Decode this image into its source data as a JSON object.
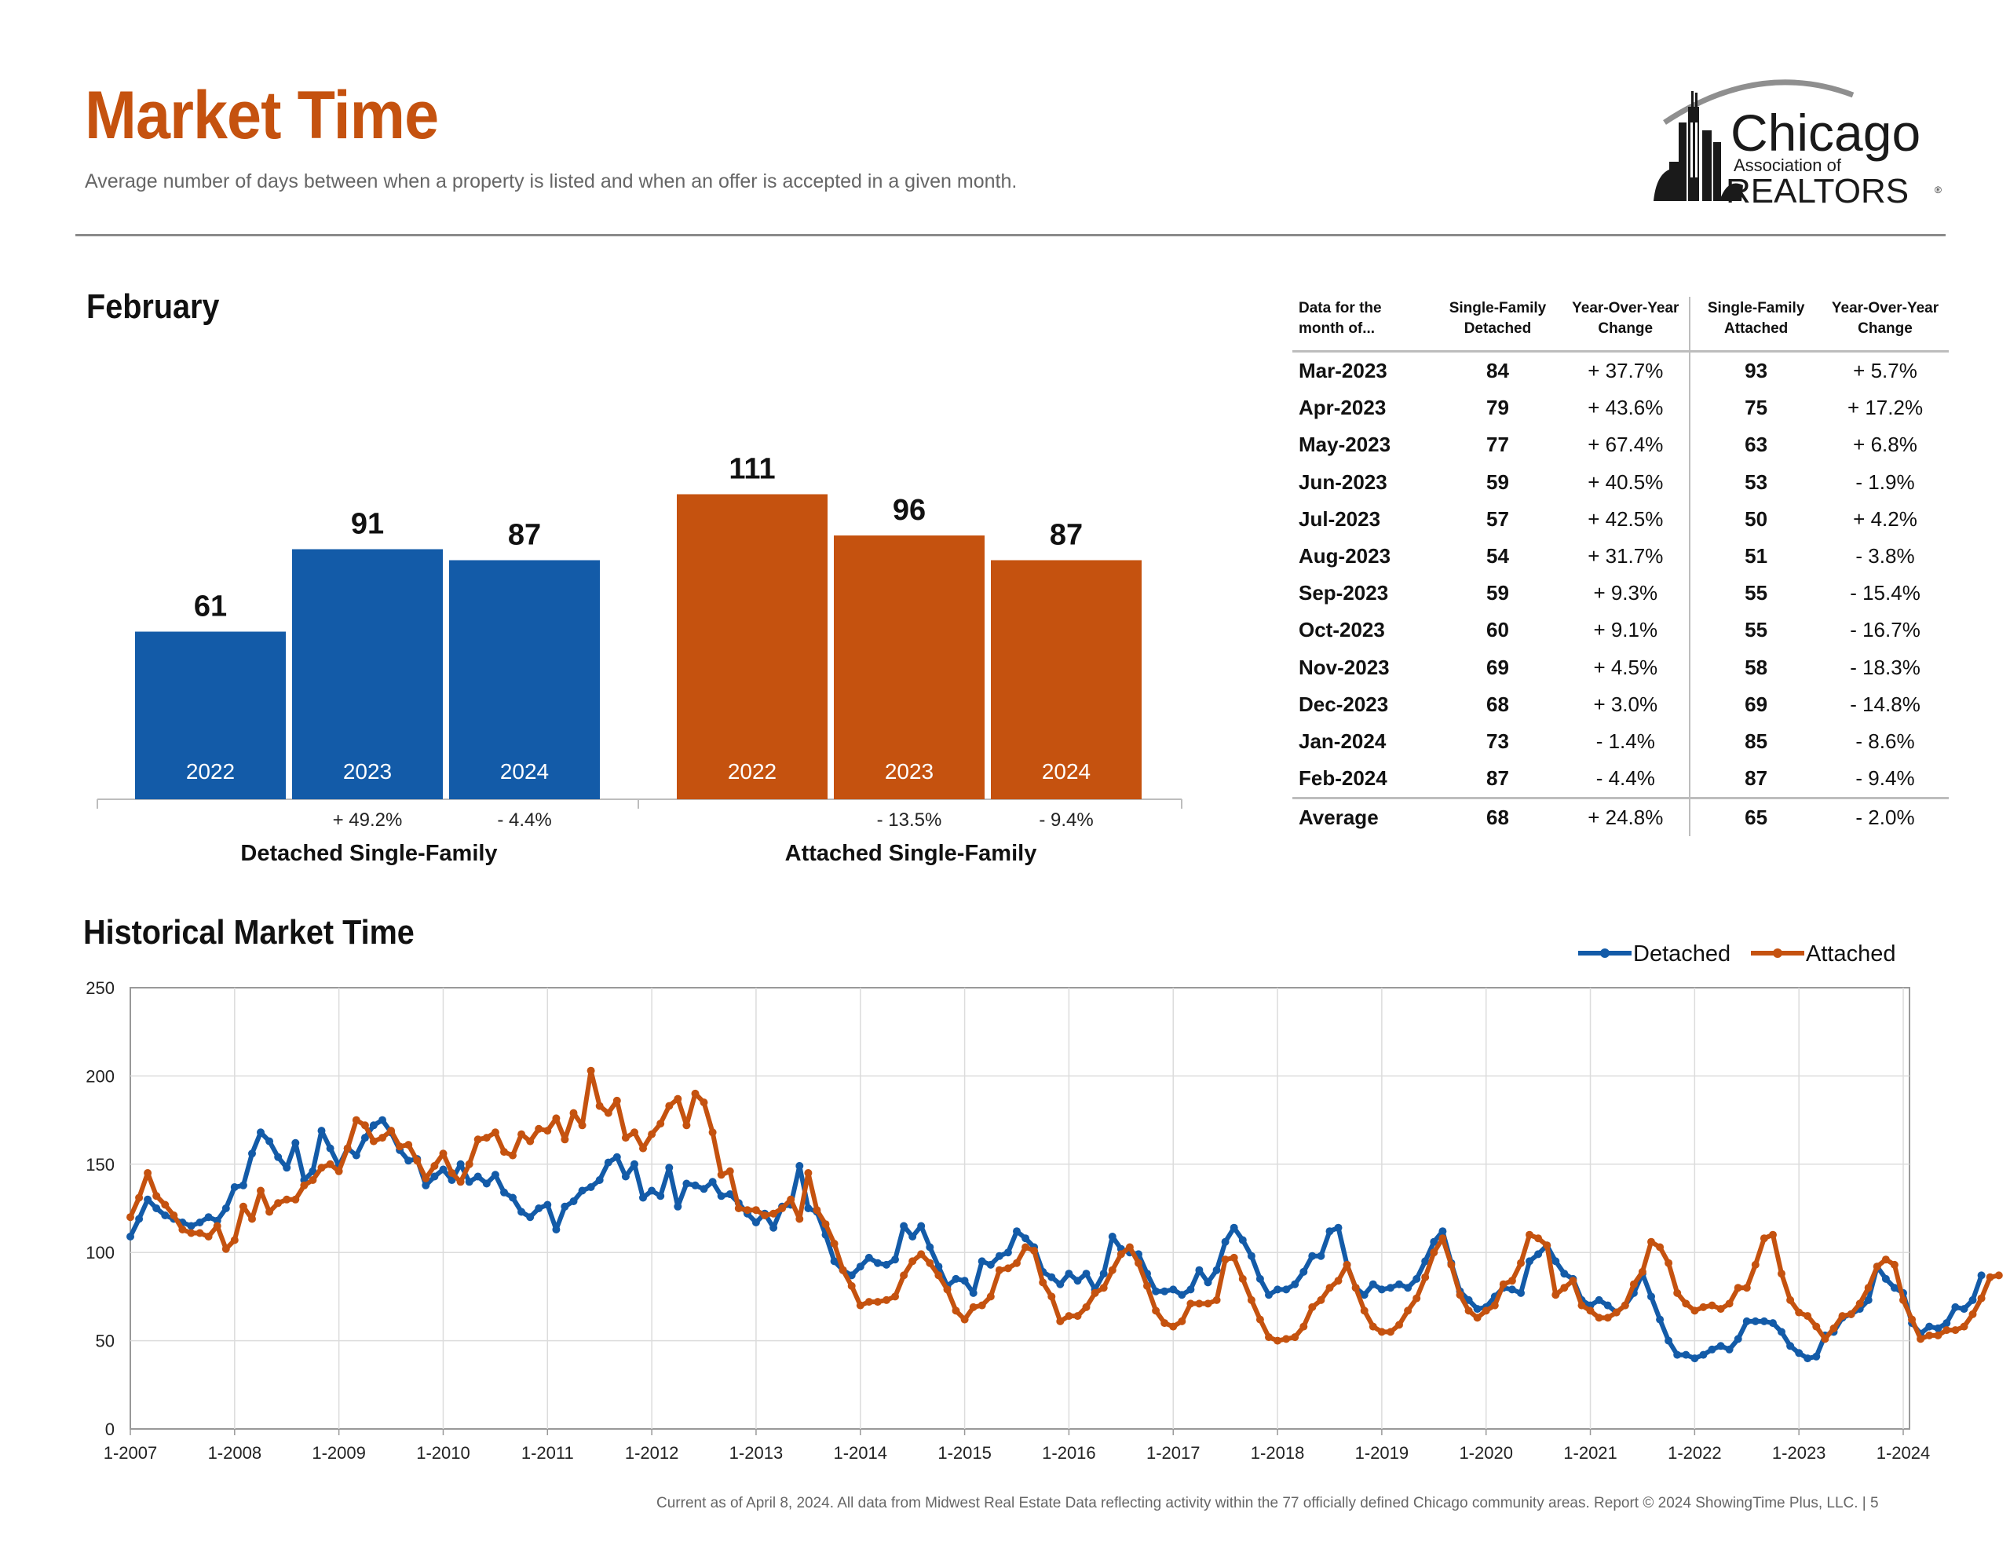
{
  "header": {
    "title": "Market Time",
    "subtitle": "Average number of days between when a property is listed and when an offer is accepted in a given month.",
    "logo": {
      "name": "Chicago",
      "line2": "Association of",
      "line3": "REALTORS",
      "icon": "chicago-skyline-logo"
    }
  },
  "colors": {
    "detached": "#135ba8",
    "attached": "#c5520f",
    "title": "#c5520f"
  },
  "february": {
    "title": "February",
    "groups": [
      {
        "label": "Detached Single-Family",
        "color": "#135ba8",
        "bars": [
          {
            "year": "2022",
            "value": 61,
            "value_label": "61",
            "change": ""
          },
          {
            "year": "2023",
            "value": 91,
            "value_label": "91",
            "change": "+ 49.2%"
          },
          {
            "year": "2024",
            "value": 87,
            "value_label": "87",
            "change": "- 4.4%"
          }
        ]
      },
      {
        "label": "Attached Single-Family",
        "color": "#c5520f",
        "bars": [
          {
            "year": "2022",
            "value": 111,
            "value_label": "111",
            "change": ""
          },
          {
            "year": "2023",
            "value": 96,
            "value_label": "96",
            "change": "- 13.5%"
          },
          {
            "year": "2024",
            "value": 87,
            "value_label": "87",
            "change": "- 9.4%"
          }
        ]
      }
    ]
  },
  "table": {
    "headers": {
      "month": "Data for the month of...",
      "detached": "Single-Family Detached",
      "detached_change": "Year-Over-Year Change",
      "attached": "Single-Family Attached",
      "attached_change": "Year-Over-Year Change"
    },
    "rows": [
      {
        "month": "Mar-2023",
        "detached": "84",
        "detached_change": "+ 37.7%",
        "attached": "93",
        "attached_change": "+ 5.7%"
      },
      {
        "month": "Apr-2023",
        "detached": "79",
        "detached_change": "+ 43.6%",
        "attached": "75",
        "attached_change": "+ 17.2%"
      },
      {
        "month": "May-2023",
        "detached": "77",
        "detached_change": "+ 67.4%",
        "attached": "63",
        "attached_change": "+ 6.8%"
      },
      {
        "month": "Jun-2023",
        "detached": "59",
        "detached_change": "+ 40.5%",
        "attached": "53",
        "attached_change": "- 1.9%"
      },
      {
        "month": "Jul-2023",
        "detached": "57",
        "detached_change": "+ 42.5%",
        "attached": "50",
        "attached_change": "+ 4.2%"
      },
      {
        "month": "Aug-2023",
        "detached": "54",
        "detached_change": "+ 31.7%",
        "attached": "51",
        "attached_change": "- 3.8%"
      },
      {
        "month": "Sep-2023",
        "detached": "59",
        "detached_change": "+ 9.3%",
        "attached": "55",
        "attached_change": "- 15.4%"
      },
      {
        "month": "Oct-2023",
        "detached": "60",
        "detached_change": "+ 9.1%",
        "attached": "55",
        "attached_change": "- 16.7%"
      },
      {
        "month": "Nov-2023",
        "detached": "69",
        "detached_change": "+ 4.5%",
        "attached": "58",
        "attached_change": "- 18.3%"
      },
      {
        "month": "Dec-2023",
        "detached": "68",
        "detached_change": "+ 3.0%",
        "attached": "69",
        "attached_change": "- 14.8%"
      },
      {
        "month": "Jan-2024",
        "detached": "73",
        "detached_change": "- 1.4%",
        "attached": "85",
        "attached_change": "- 8.6%"
      },
      {
        "month": "Feb-2024",
        "detached": "87",
        "detached_change": "- 4.4%",
        "attached": "87",
        "attached_change": "- 9.4%"
      }
    ],
    "average": {
      "month": "Average",
      "detached": "68",
      "detached_change": "+ 24.8%",
      "attached": "65",
      "attached_change": "- 2.0%"
    }
  },
  "historical": {
    "title": "Historical Market Time"
  },
  "chart_data": [
    {
      "type": "bar",
      "title": "February",
      "categories": [
        "Detached Single-Family",
        "Attached Single-Family"
      ],
      "series": [
        {
          "name": "2022",
          "values": [
            61,
            111
          ]
        },
        {
          "name": "2023",
          "values": [
            91,
            96
          ]
        },
        {
          "name": "2024",
          "values": [
            87,
            87
          ]
        }
      ],
      "year_over_year_change": {
        "Detached Single-Family": [
          "",
          "+ 49.2%",
          "- 4.4%"
        ],
        "Attached Single-Family": [
          "",
          "- 13.5%",
          "- 9.4%"
        ]
      },
      "grid": false
    },
    {
      "type": "line",
      "title": "Historical Market Time",
      "x_start": "1-2007",
      "x_end": "2-2024",
      "x_frequency": "monthly",
      "x_tick_labels": [
        "1-2007",
        "1-2008",
        "1-2009",
        "1-2010",
        "1-2011",
        "1-2012",
        "1-2013",
        "1-2014",
        "1-2015",
        "1-2016",
        "1-2017",
        "1-2018",
        "1-2019",
        "1-2020",
        "1-2021",
        "1-2022",
        "1-2023",
        "1-2024"
      ],
      "ylim": [
        0,
        250
      ],
      "y_ticks": [
        0,
        50,
        100,
        150,
        200,
        250
      ],
      "grid": true,
      "legend_position": "top-right",
      "series": [
        {
          "name": "Detached",
          "color": "#135ba8",
          "values": [
            109,
            119,
            130,
            125,
            121,
            119,
            117,
            115,
            117,
            120,
            118,
            125,
            137,
            138,
            156,
            168,
            163,
            154,
            148,
            162,
            141,
            146,
            169,
            159,
            149,
            159,
            155,
            165,
            172,
            175,
            168,
            158,
            152,
            153,
            138,
            143,
            147,
            141,
            150,
            140,
            143,
            139,
            144,
            134,
            131,
            123,
            120,
            125,
            127,
            113,
            126,
            129,
            135,
            137,
            141,
            151,
            154,
            143,
            150,
            131,
            135,
            132,
            148,
            126,
            139,
            138,
            136,
            140,
            132,
            133,
            128,
            122,
            117,
            122,
            114,
            126,
            127,
            149,
            125,
            123,
            110,
            95,
            90,
            87,
            92,
            97,
            94,
            93,
            96,
            115,
            109,
            115,
            103,
            92,
            81,
            85,
            84,
            77,
            95,
            93,
            98,
            100,
            112,
            108,
            103,
            89,
            86,
            82,
            88,
            84,
            88,
            79,
            88,
            109,
            102,
            100,
            99,
            88,
            78,
            78,
            79,
            76,
            79,
            90,
            83,
            90,
            106,
            114,
            107,
            98,
            85,
            76,
            79,
            79,
            82,
            89,
            98,
            98,
            112,
            114,
            93,
            80,
            76,
            82,
            79,
            80,
            82,
            80,
            85,
            95,
            106,
            112,
            94,
            78,
            73,
            68,
            69,
            75,
            80,
            79,
            77,
            95,
            99,
            104,
            95,
            88,
            85,
            73,
            70,
            73,
            70,
            66,
            70,
            77,
            88,
            75,
            62,
            50,
            42,
            42,
            40,
            42,
            45,
            47,
            45,
            51,
            61,
            61,
            61,
            60,
            55,
            47,
            43,
            40,
            41,
            53,
            55,
            63,
            65,
            68,
            73,
            92,
            85,
            80,
            77,
            60,
            54,
            58,
            57,
            60,
            69,
            68,
            73,
            87
          ]
        },
        {
          "name": "Attached",
          "color": "#c5520f",
          "values": [
            120,
            131,
            145,
            132,
            127,
            121,
            113,
            111,
            111,
            109,
            115,
            102,
            107,
            126,
            119,
            135,
            123,
            128,
            130,
            130,
            138,
            141,
            148,
            150,
            146,
            159,
            175,
            172,
            163,
            165,
            169,
            160,
            161,
            152,
            142,
            149,
            156,
            145,
            140,
            150,
            164,
            165,
            168,
            157,
            155,
            167,
            163,
            170,
            169,
            176,
            164,
            179,
            172,
            203,
            183,
            179,
            186,
            165,
            168,
            159,
            167,
            173,
            183,
            187,
            172,
            190,
            185,
            168,
            144,
            146,
            125,
            124,
            124,
            121,
            122,
            125,
            130,
            119,
            145,
            124,
            116,
            105,
            90,
            81,
            70,
            72,
            72,
            73,
            75,
            87,
            95,
            99,
            94,
            87,
            79,
            67,
            62,
            69,
            70,
            75,
            90,
            91,
            94,
            103,
            101,
            83,
            75,
            61,
            64,
            64,
            69,
            77,
            80,
            90,
            99,
            103,
            94,
            81,
            67,
            60,
            58,
            61,
            71,
            71,
            71,
            73,
            96,
            97,
            85,
            73,
            62,
            52,
            50,
            51,
            52,
            58,
            69,
            73,
            80,
            84,
            93,
            80,
            67,
            58,
            55,
            55,
            59,
            67,
            74,
            86,
            100,
            108,
            93,
            76,
            67,
            63,
            67,
            70,
            82,
            84,
            94,
            110,
            108,
            104,
            76,
            80,
            84,
            70,
            67,
            63,
            63,
            66,
            70,
            82,
            89,
            106,
            103,
            94,
            77,
            71,
            67,
            69,
            70,
            68,
            71,
            80,
            80,
            93,
            108,
            110,
            88,
            73,
            66,
            64,
            58,
            51,
            57,
            64,
            65,
            71,
            80,
            92,
            96,
            93,
            73,
            62,
            51,
            53,
            53,
            56,
            56,
            58,
            65,
            74,
            86,
            87
          ]
        }
      ]
    }
  ],
  "footer": {
    "note": "Current as of April 8, 2024.  All data from Midwest Real Estate Data reflecting activity within the 77 officially defined Chicago community areas. Report © 2024 ShowingTime Plus, LLC.  |  5"
  }
}
